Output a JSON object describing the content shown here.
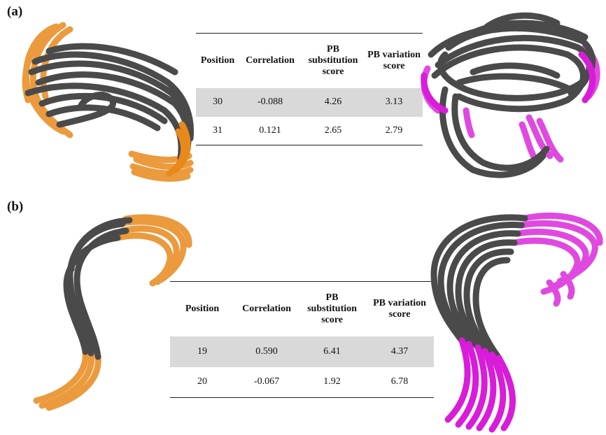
{
  "panel_a": {
    "label": "(a)",
    "table": {
      "headers": [
        "Position",
        "Correlation",
        "PB substitution score",
        "PB variation score"
      ],
      "rows": [
        [
          "30",
          "-0.088",
          "4.26",
          "3.13"
        ],
        [
          "31",
          "0.121",
          "2.65",
          "2.79"
        ]
      ]
    }
  },
  "panel_b": {
    "label": "(b)",
    "table": {
      "headers": [
        "Position",
        "Correlation",
        "PB substitution score",
        "PB variation score"
      ],
      "rows": [
        [
          "19",
          "0.590",
          "6.41",
          "4.37"
        ],
        [
          "20",
          "-0.067",
          "1.92",
          "6.78"
        ]
      ]
    }
  },
  "colors": {
    "backbone": "#4a4a4a",
    "highlight_orange": "#e8891c",
    "highlight_magenta": "#d91cd9",
    "row_shade": "#d9d9d9"
  }
}
